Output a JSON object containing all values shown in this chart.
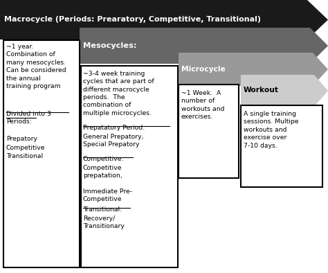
{
  "bg_color": "#ffffff",
  "arrow_dark": "#1a1a1a",
  "arrow_gray1": "#666666",
  "arrow_gray2": "#999999",
  "arrow_gray3": "#cccccc",
  "macrocycle_title": "Macrocycle (Periods: Prearatory, Competitive, Transitional)",
  "meso_header": "Mesocycles:",
  "micro_header": "Microcycle",
  "workout_header": "Workout",
  "macro_body": "~1 year.\nCombination of\nmany mesocycles.\nCan be considered\nthe annual\ntraining program",
  "macro_div": "Divided into 3\nPeriods:",
  "macro_list": "Prepatory\nCompetitive\nTransitional",
  "meso_body": "~3-4 week training\ncycles that are part of\ndifferent macrocycle\nperiods.  The\ncombination of\nmultiple microcycles.",
  "meso_prep_ul": "Prepatatory Period:",
  "meso_prep_body": "General Prepatory,\nSpecial Prepatory",
  "meso_comp_ul": "Competitive:",
  "meso_comp_body": "Competitive\nprepatation,\n\nImmediate Pre-\nCompetitive",
  "meso_trans_ul": "Transitional:",
  "meso_trans_body": "Recovery/\nTransitionary",
  "micro_body": "~1 Week.  A\nnumber of\nworkouts and\nexercises.",
  "workout_body": "A single training\nsessions. Multipe\nworkouts and\nexercise over\n7-10 days."
}
